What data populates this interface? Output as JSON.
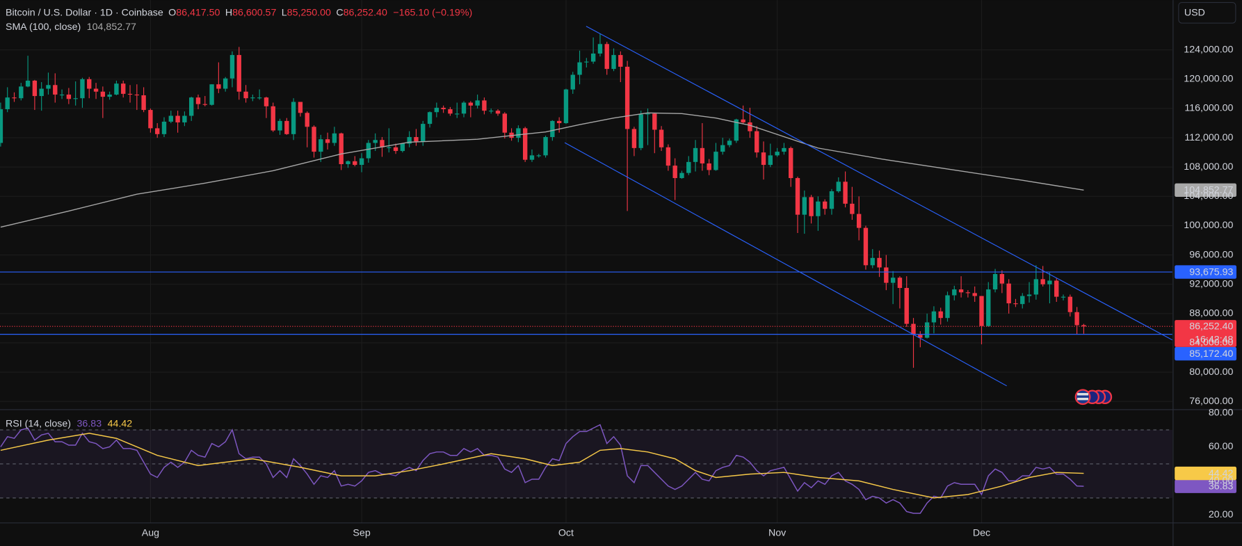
{
  "header": {
    "symbol": "Bitcoin / U.S. Dollar · 1D · Coinbase",
    "ohlc": [
      {
        "key": "O",
        "value": "86,417.50"
      },
      {
        "key": "H",
        "value": "86,600.57"
      },
      {
        "key": "L",
        "value": "85,250.00"
      },
      {
        "key": "C",
        "value": "86,252.40"
      }
    ],
    "change": "−165.10 (−0.19%)",
    "currency": "USD"
  },
  "chart_data": [
    {
      "type": "candlestick",
      "categories": [
        null,
        null,
        null,
        null,
        null,
        null,
        null,
        null,
        null,
        null,
        null,
        null,
        null,
        null,
        null,
        null,
        null,
        null,
        null,
        null,
        null,
        null,
        "Aug",
        null,
        null,
        null,
        null,
        null,
        null,
        null,
        null,
        null,
        null,
        null,
        null,
        null,
        null,
        null,
        null,
        null,
        null,
        null,
        null,
        null,
        null,
        null,
        null,
        null,
        null,
        null,
        null,
        null,
        null,
        "Sep",
        null,
        null,
        null,
        null,
        null,
        null,
        null,
        null,
        null,
        null,
        null,
        null,
        null,
        null,
        null,
        null,
        null,
        null,
        null,
        null,
        null,
        null,
        null,
        null,
        null,
        null,
        null,
        null,
        null,
        "Oct",
        null,
        null,
        null,
        null,
        null,
        null,
        null,
        null,
        null,
        null,
        null,
        null,
        null,
        null,
        null,
        null,
        null,
        null,
        null,
        null,
        null,
        null,
        null,
        null,
        null,
        null,
        null,
        null,
        null,
        null,
        "Nov",
        null,
        null,
        null,
        null,
        null,
        null,
        null,
        null,
        null,
        null,
        null,
        null,
        null,
        null,
        null,
        null,
        null,
        null,
        null,
        null,
        null,
        null,
        null,
        null,
        null,
        null,
        null,
        null,
        null,
        "Dec",
        null,
        null,
        null,
        null,
        null,
        null,
        null,
        null,
        null,
        null,
        null,
        null,
        null,
        null,
        null
      ],
      "open": [
        111300,
        115900,
        117500,
        117400,
        119000,
        119800,
        117700,
        118700,
        119200,
        117900,
        117900,
        117300,
        117400,
        120000,
        118700,
        118300,
        117600,
        117900,
        119400,
        118000,
        117900,
        117800,
        115800,
        113300,
        112500,
        114200,
        115000,
        114100,
        115000,
        117500,
        116600,
        116500,
        119300,
        118700,
        120100,
        123300,
        118300,
        117400,
        117500,
        117500,
        116300,
        113000,
        114300,
        112500,
        116900,
        115400,
        113500,
        110100,
        111800,
        111300,
        112600,
        108400,
        108800,
        108300,
        109200,
        111300,
        111700,
        110700,
        110700,
        110200,
        111200,
        112100,
        111500,
        113900,
        115500,
        116100,
        115900,
        115300,
        115300,
        116800,
        116400,
        117100,
        115700,
        115700,
        115300,
        112700,
        112000,
        113300,
        109000,
        109600,
        109600,
        112100,
        114300,
        114000,
        118600,
        120600,
        122300,
        122400,
        123500,
        124800,
        121400,
        123300,
        121700,
        113200,
        110600,
        115200,
        115300,
        113100,
        110700,
        108200,
        106500,
        107200,
        108700,
        110600,
        108500,
        107600,
        110100,
        111000,
        111600,
        114500,
        114100,
        112900,
        110000,
        108300,
        109600,
        110100,
        110600,
        106500,
        101500,
        103900,
        101300,
        103300,
        102300,
        104700,
        106000,
        103000,
        101600,
        99700,
        94600,
        95600,
        94300,
        92200,
        92900,
        91500,
        86600,
        85100,
        84700,
        86800,
        88300,
        87400,
        90500,
        91300,
        90900,
        90800,
        90400,
        86300,
        91300,
        93400,
        92100,
        89400,
        89300,
        90400,
        90600,
        92700,
        92000,
        92500,
        90300,
        90300,
        88200,
        86417.5
      ],
      "high": [
        116800,
        118900,
        118200,
        119500,
        123200,
        119900,
        119600,
        120900,
        120800,
        118600,
        118800,
        119700,
        120200,
        120300,
        119500,
        119000,
        118300,
        119800,
        119800,
        119200,
        119300,
        118900,
        116000,
        114000,
        114800,
        115700,
        115700,
        115600,
        117600,
        117900,
        117700,
        119300,
        122300,
        120300,
        123800,
        124400,
        119200,
        117900,
        118600,
        117600,
        116800,
        114600,
        114700,
        117400,
        116900,
        115600,
        113700,
        112400,
        112700,
        113500,
        112700,
        108900,
        109500,
        109900,
        111700,
        112600,
        112100,
        113300,
        111200,
        111300,
        112900,
        113200,
        114300,
        115600,
        116800,
        116400,
        116200,
        116800,
        117000,
        117000,
        117900,
        117500,
        116000,
        115900,
        115500,
        113300,
        113700,
        113500,
        110400,
        109800,
        112300,
        114400,
        114800,
        118700,
        121000,
        123900,
        122900,
        125700,
        126200,
        125100,
        124200,
        123800,
        122500,
        113500,
        115700,
        116000,
        115400,
        113600,
        111100,
        109200,
        107500,
        109500,
        111700,
        114000,
        109100,
        111300,
        112000,
        111900,
        114600,
        116400,
        116100,
        113600,
        111500,
        111200,
        110600,
        111300,
        110800,
        106700,
        104800,
        104200,
        104000,
        103600,
        105000,
        106600,
        107400,
        105300,
        104000,
        100000,
        96800,
        96600,
        96000,
        93800,
        93100,
        93100,
        87400,
        85600,
        88000,
        89000,
        88800,
        91000,
        91800,
        93100,
        91200,
        91700,
        90400,
        92300,
        94100,
        93900,
        92700,
        90000,
        90800,
        92300,
        94600,
        94500,
        93600,
        92800,
        90600,
        90600,
        88900,
        86600.57
      ],
      "low": [
        110800,
        115500,
        116900,
        117100,
        118900,
        115800,
        115700,
        117900,
        116800,
        117300,
        116600,
        116400,
        116100,
        117400,
        117300,
        114700,
        117200,
        117800,
        117500,
        116800,
        115800,
        115500,
        112700,
        112000,
        112100,
        114000,
        112700,
        113600,
        114300,
        115900,
        116300,
        116400,
        118100,
        118300,
        118900,
        117200,
        116800,
        117000,
        117200,
        114700,
        112800,
        112400,
        112400,
        111700,
        114900,
        110700,
        109300,
        108700,
        110400,
        110900,
        107600,
        107900,
        108100,
        107300,
        108600,
        110200,
        109400,
        110000,
        109800,
        110000,
        110700,
        110900,
        110900,
        113400,
        114800,
        115400,
        115000,
        114700,
        114800,
        114800,
        116000,
        115200,
        115300,
        115000,
        111900,
        111600,
        111400,
        108700,
        108700,
        109300,
        109300,
        111600,
        112700,
        113900,
        118000,
        119300,
        121600,
        122100,
        123100,
        120600,
        121100,
        119600,
        102000,
        109500,
        110300,
        111000,
        109900,
        110200,
        107500,
        103500,
        106400,
        106900,
        107400,
        107500,
        106900,
        107500,
        109700,
        110700,
        111300,
        113900,
        112000,
        109300,
        106300,
        108000,
        109400,
        109700,
        105300,
        99000,
        98900,
        100300,
        99300,
        101500,
        101500,
        104500,
        102500,
        100800,
        98000,
        94000,
        94200,
        93000,
        91200,
        89300,
        88700,
        86200,
        80600,
        83400,
        84600,
        85300,
        86500,
        86900,
        89800,
        90200,
        90200,
        89600,
        83800,
        86200,
        90900,
        90800,
        88000,
        88900,
        88700,
        89500,
        89900,
        91700,
        89400,
        89600,
        89800,
        87600,
        85200,
        85250
      ],
      "close": [
        115900,
        117500,
        117400,
        119000,
        119800,
        117700,
        118700,
        119200,
        117900,
        117900,
        117300,
        117400,
        120000,
        118700,
        118300,
        117600,
        117900,
        119400,
        118000,
        117900,
        117800,
        115800,
        113300,
        112500,
        114200,
        115000,
        114100,
        115000,
        117500,
        116600,
        116500,
        119300,
        118700,
        120100,
        123300,
        118300,
        117400,
        117500,
        117500,
        116300,
        113000,
        114300,
        112500,
        116900,
        115400,
        113500,
        110100,
        111800,
        111300,
        112600,
        108400,
        108800,
        108300,
        109200,
        111300,
        111700,
        110700,
        110700,
        110200,
        111200,
        112100,
        111500,
        113900,
        115500,
        116100,
        115900,
        115300,
        115300,
        116800,
        116400,
        117100,
        115700,
        115700,
        115300,
        112700,
        112000,
        113300,
        109000,
        109600,
        109600,
        112100,
        114300,
        114000,
        118600,
        120600,
        122300,
        122400,
        123500,
        124800,
        121400,
        123300,
        121700,
        113200,
        110600,
        115200,
        115300,
        113100,
        110700,
        108200,
        106500,
        107200,
        108700,
        110600,
        108500,
        107600,
        110100,
        111000,
        111600,
        114500,
        114100,
        112900,
        110000,
        108300,
        109600,
        110100,
        110600,
        106500,
        101500,
        103900,
        101300,
        103300,
        102300,
        104700,
        106000,
        103000,
        101600,
        99700,
        94600,
        95600,
        94300,
        92200,
        92900,
        91500,
        86600,
        85100,
        84700,
        86800,
        88300,
        87400,
        90500,
        91300,
        90900,
        90800,
        90400,
        86300,
        91300,
        93400,
        92100,
        89400,
        89300,
        90400,
        90600,
        92700,
        92000,
        92500,
        90300,
        90300,
        88200,
        86417.5,
        86252.4
      ],
      "up_color": "#089981",
      "down_color": "#f23645",
      "last_price_label": "86,252.40",
      "countdown": "16:42:48",
      "sma": {
        "name": "SMA (100, close)",
        "color": "#a8a8a8",
        "x": [
          0,
          10,
          20,
          30,
          40,
          50,
          60,
          70,
          80,
          85,
          90,
          95,
          100,
          105,
          110,
          120,
          130,
          140,
          150,
          159
        ],
        "values": [
          99800,
          102000,
          104300,
          105800,
          107500,
          109800,
          111400,
          111800,
          112800,
          113800,
          114700,
          115400,
          115300,
          114700,
          113700,
          110600,
          109000,
          107600,
          106200,
          104852.77
        ],
        "last_label": "104,852.77"
      },
      "levels": [
        {
          "value": 93675.93,
          "label": "93,675.93"
        },
        {
          "value": 85172.4,
          "label": "85,172.40"
        }
      ],
      "level_color": "#2962ff",
      "ylim": [
        75100,
        130800
      ],
      "yticks": [
        {
          "value": 76000,
          "label": "76,000.00"
        },
        {
          "value": 80000,
          "label": "80,000.00"
        },
        {
          "value": 84000,
          "label": "84,000.00"
        },
        {
          "value": 88000,
          "label": "88,000.00"
        },
        {
          "value": 92000,
          "label": "92,000.00"
        },
        {
          "value": 96000,
          "label": "96,000.00"
        },
        {
          "value": 100000,
          "label": "100,000.00"
        },
        {
          "value": 104000,
          "label": "104,000.00"
        },
        {
          "value": 108000,
          "label": "108,000.00"
        },
        {
          "value": 112000,
          "label": "112,000.00"
        },
        {
          "value": 116000,
          "label": "116,000.00"
        },
        {
          "value": 120000,
          "label": "120,000.00"
        },
        {
          "value": 124000,
          "label": "124,000.00"
        }
      ],
      "grid": true
    },
    {
      "type": "line",
      "title": "RSI (14, close)",
      "series": [
        {
          "color": "#7e57c2",
          "values": [
            60,
            66,
            65,
            70,
            71,
            64,
            67,
            68,
            63,
            63,
            61,
            61,
            68,
            63,
            62,
            59,
            60,
            64,
            59,
            59,
            58,
            51,
            44,
            42,
            48,
            51,
            48,
            51,
            58,
            55,
            54,
            62,
            60,
            63,
            70,
            56,
            53,
            54,
            54,
            50,
            42,
            46,
            42,
            53,
            49,
            44,
            38,
            43,
            42,
            46,
            37,
            38,
            37,
            40,
            45,
            46,
            44,
            44,
            43,
            46,
            48,
            46,
            52,
            56,
            57,
            57,
            55,
            55,
            59,
            57,
            59,
            55,
            55,
            54,
            47,
            45,
            49,
            39,
            41,
            41,
            48,
            53,
            52,
            62,
            66,
            69,
            69,
            71,
            73,
            62,
            66,
            61,
            43,
            39,
            49,
            49,
            45,
            41,
            37,
            35,
            37,
            41,
            45,
            41,
            40,
            46,
            48,
            49,
            55,
            54,
            51,
            46,
            43,
            46,
            47,
            48,
            41,
            34,
            39,
            36,
            40,
            38,
            43,
            45,
            40,
            38,
            35,
            29,
            31,
            30,
            27,
            29,
            27,
            22,
            21,
            21,
            27,
            31,
            30,
            37,
            39,
            38,
            38,
            38,
            32,
            43,
            47,
            45,
            40,
            40,
            43,
            43,
            48,
            47,
            48,
            44,
            44,
            41,
            37,
            36.83
          ]
        },
        {
          "color": "#f7c948",
          "x": [
            0,
            7,
            13,
            17,
            23,
            29,
            37,
            44,
            50,
            55,
            60,
            65,
            72,
            77,
            81,
            85,
            88,
            91,
            95,
            99,
            102,
            105,
            110,
            115,
            120,
            126,
            131,
            137,
            142,
            147,
            151,
            155,
            159
          ],
          "values": [
            58,
            64,
            68,
            65,
            55,
            49,
            53,
            48,
            43,
            43,
            46,
            50,
            56,
            53,
            49,
            51,
            58,
            59,
            57,
            53,
            46,
            42,
            44,
            45,
            42,
            40,
            35,
            30,
            32,
            37,
            42,
            45,
            44.42
          ]
        }
      ],
      "levels": [
        70,
        50,
        30
      ],
      "band_color": "#7e57c2",
      "ylim": [
        15.3,
        81.4
      ],
      "yticks": [
        {
          "value": 80,
          "label": "80.00"
        },
        {
          "value": 60,
          "label": "60.00"
        },
        {
          "value": 40,
          "label": "40.00"
        },
        {
          "value": 20,
          "label": "20.00"
        }
      ],
      "grid": false
    }
  ]
}
